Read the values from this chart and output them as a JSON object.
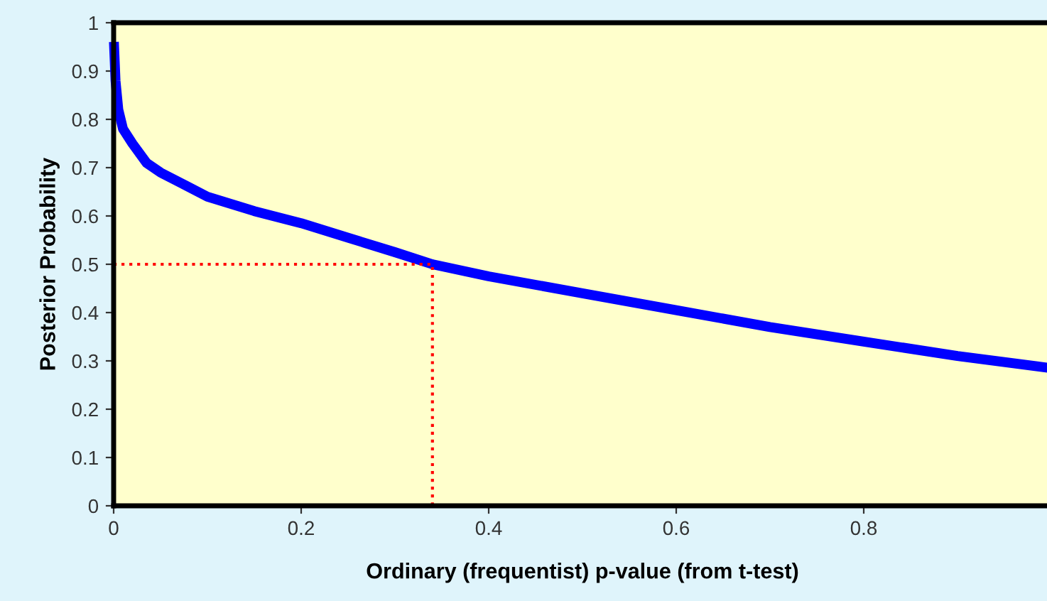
{
  "chart_data": {
    "type": "line",
    "xlabel": "Ordinary (frequentist) p-value (from t-test)",
    "ylabel": "Posterior Probability",
    "xlim": [
      0,
      1
    ],
    "ylim": [
      0,
      1
    ],
    "xticks": [
      0,
      0.2,
      0.4,
      0.6,
      0.8
    ],
    "yticks": [
      0,
      0.1,
      0.2,
      0.3,
      0.4,
      0.5,
      0.6,
      0.7,
      0.8,
      0.9,
      1
    ],
    "grid": false,
    "marker": "none",
    "series": [
      {
        "color": "#0000ff",
        "line_style": "solid",
        "x": [
          0.0005,
          0.002,
          0.005,
          0.01,
          0.02,
          0.035,
          0.05,
          0.1,
          0.15,
          0.2,
          0.25,
          0.3,
          0.34,
          0.4,
          0.5,
          0.6,
          0.7,
          0.8,
          0.9,
          1.0
        ],
        "values": [
          0.95,
          0.88,
          0.82,
          0.78,
          0.75,
          0.71,
          0.69,
          0.64,
          0.61,
          0.585,
          0.555,
          0.525,
          0.5,
          0.475,
          0.44,
          0.405,
          0.37,
          0.34,
          0.31,
          0.285
        ]
      },
      {
        "color": "#ff0000",
        "line_style": "dotted",
        "x": [
          0,
          0.34,
          0.34
        ],
        "values": [
          0.5,
          0.5,
          0
        ]
      }
    ]
  }
}
